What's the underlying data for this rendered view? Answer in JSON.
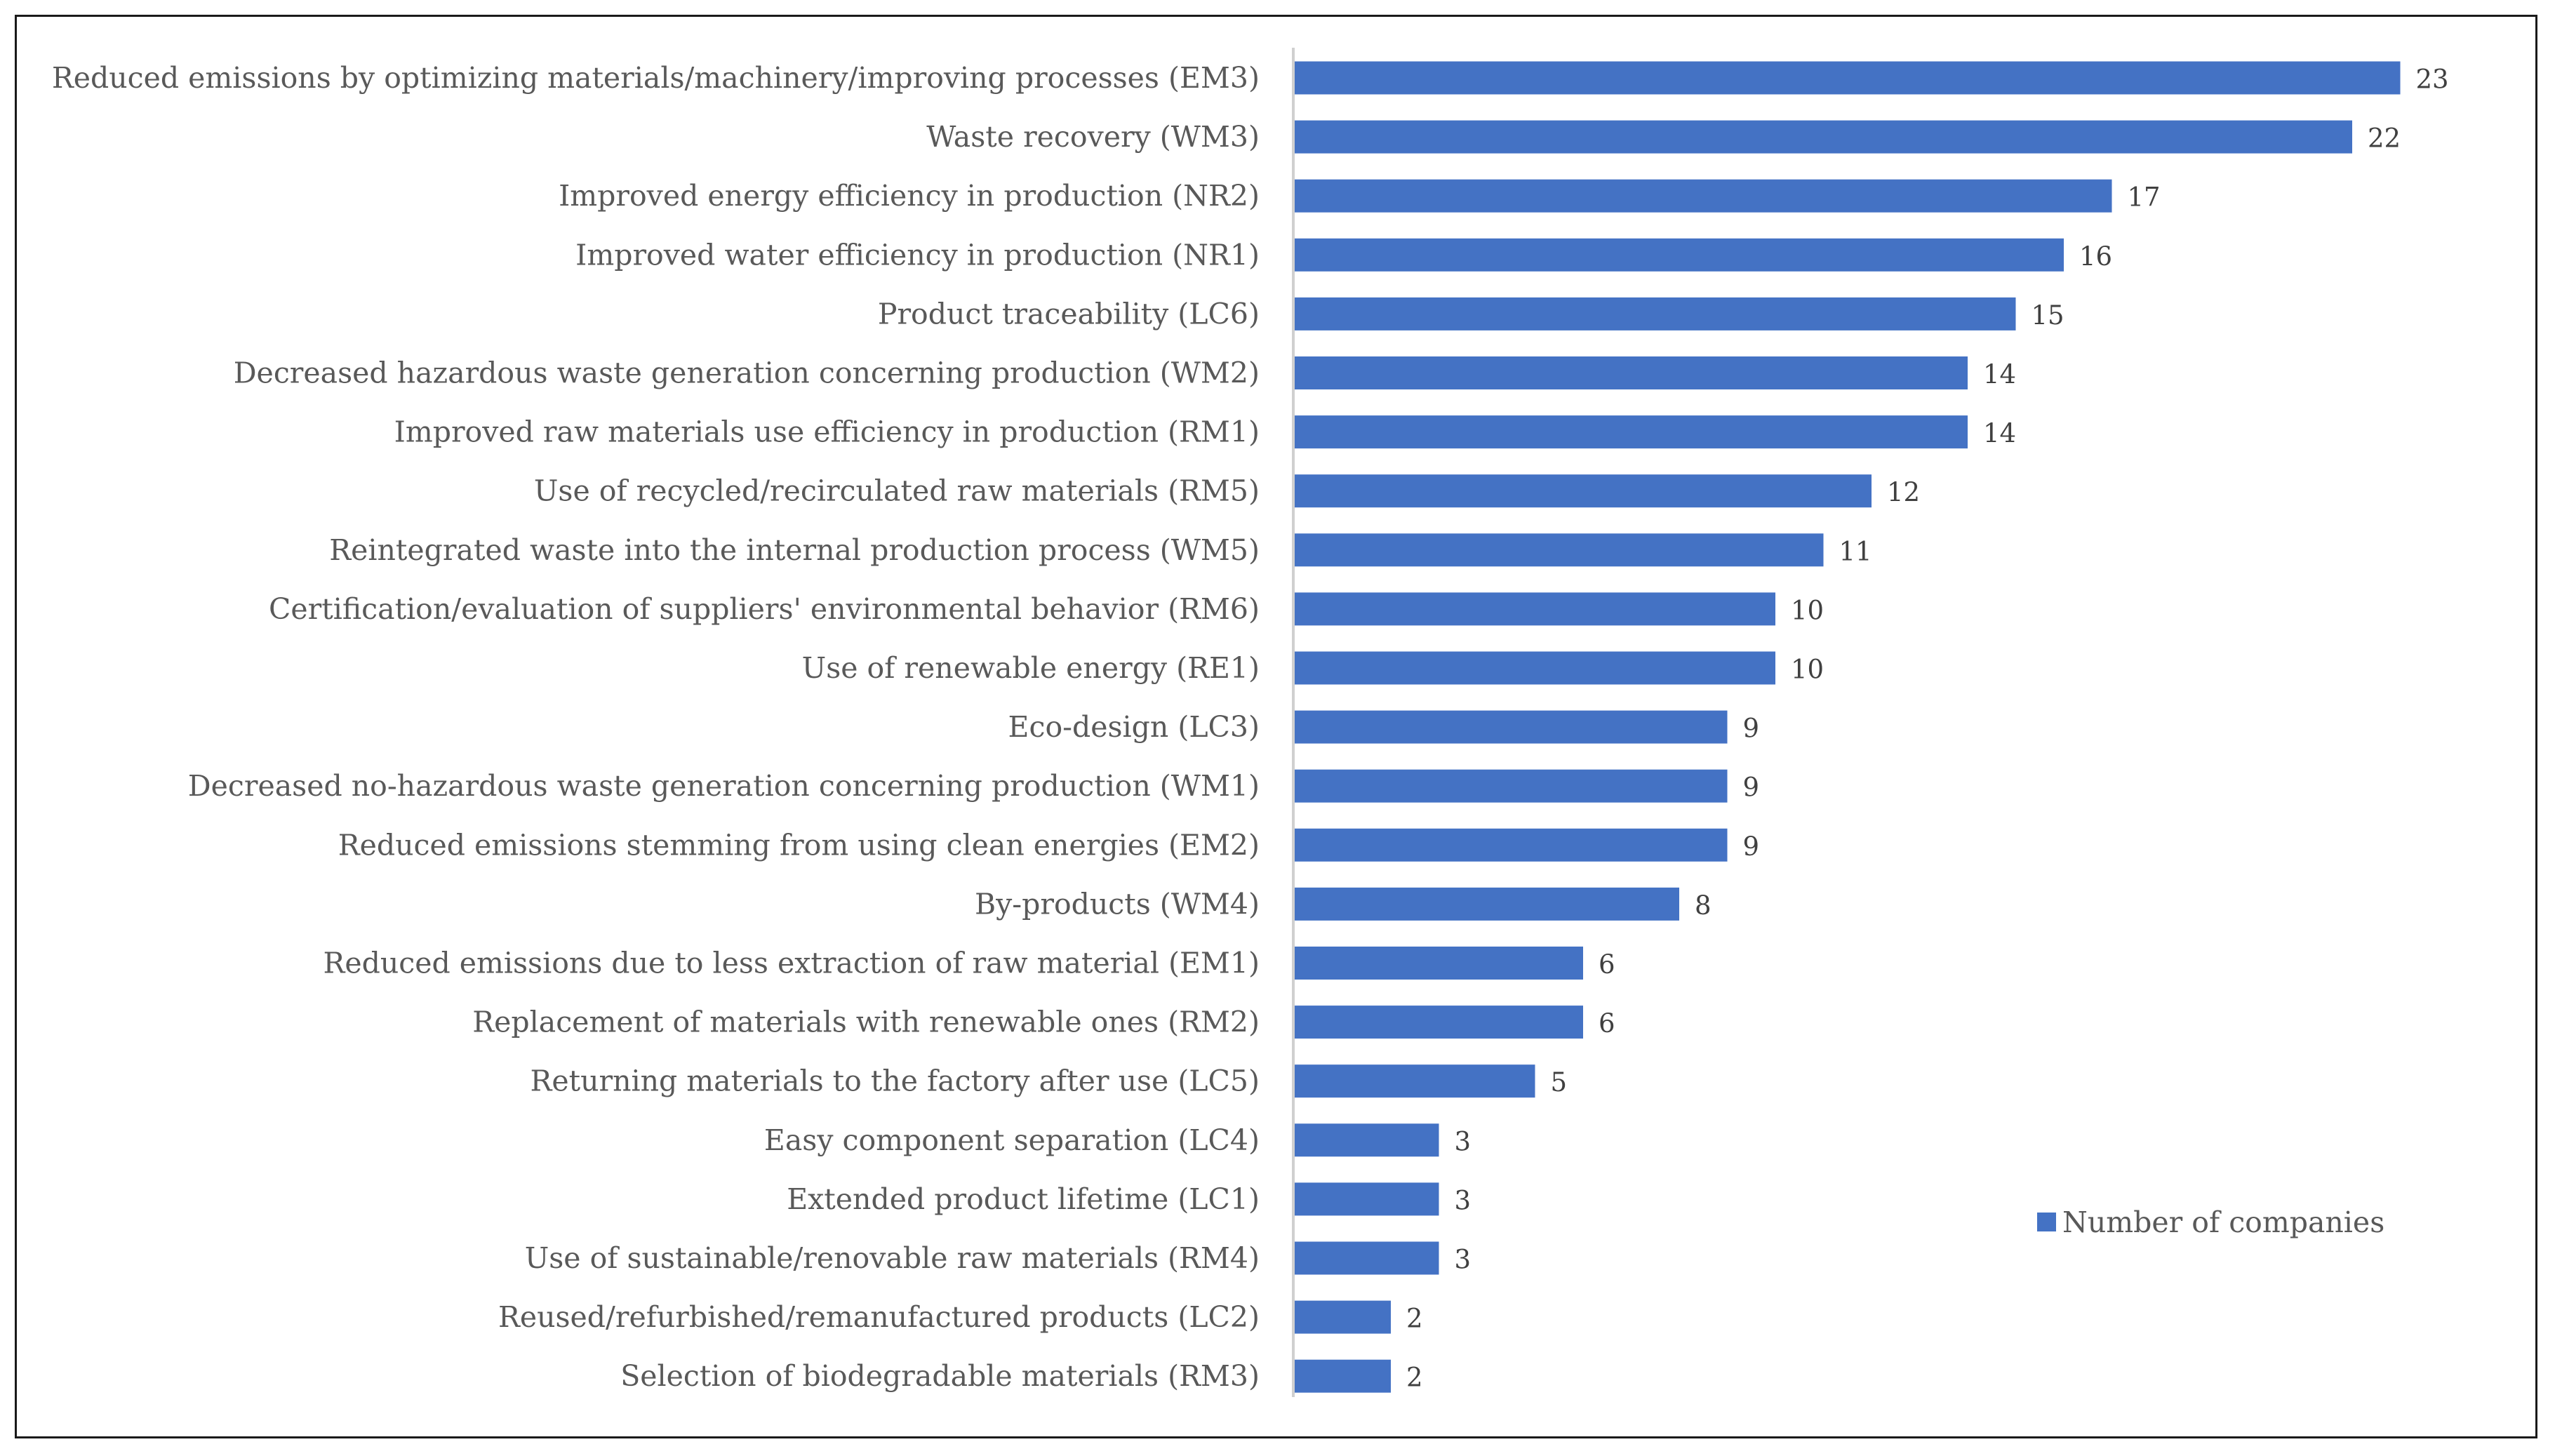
{
  "chart_data": {
    "type": "bar",
    "orientation": "horizontal",
    "title": "",
    "xlabel": "",
    "ylabel": "",
    "xlim": [
      0,
      23
    ],
    "grid": false,
    "legend_position": "right",
    "bar_color": "#4472C4",
    "categories": [
      "Reduced emissions by optimizing materials/machinery/improving processes (EM3)",
      "Waste recovery (WM3)",
      "Improved energy efficiency in production (NR2)",
      "Improved water efficiency in production (NR1)",
      "Product traceability (LC6)",
      "Decreased hazardous waste generation concerning production (WM2)",
      "Improved raw materials use efficiency in production (RM1)",
      "Use of recycled/recirculated raw materials  (RM5)",
      "Reintegrated waste into the internal production process (WM5)",
      "Certification/evaluation of suppliers' environmental behavior (RM6)",
      "Use of renewable energy (RE1)",
      "Eco-design (LC3)",
      "Decreased no-hazardous waste generation concerning production (WM1)",
      "Reduced emissions stemming from using clean energies (EM2)",
      "By-products (WM4)",
      "Reduced emissions due to less extraction of raw material (EM1)",
      "Replacement of materials with renewable ones (RM2)",
      "Returning materials to the factory after use (LC5)",
      "Easy component separation (LC4)",
      "Extended product lifetime (LC1)",
      "Use of sustainable/renovable raw materials (RM4)",
      "Reused/refurbished/remanufactured products (LC2)",
      "Selection of biodegradable materials (RM3)"
    ],
    "series": [
      {
        "name": "Number of companies",
        "values": [
          23,
          22,
          17,
          16,
          15,
          14,
          14,
          12,
          11,
          10,
          10,
          9,
          9,
          9,
          8,
          6,
          6,
          5,
          3,
          3,
          3,
          2,
          2
        ]
      }
    ]
  }
}
